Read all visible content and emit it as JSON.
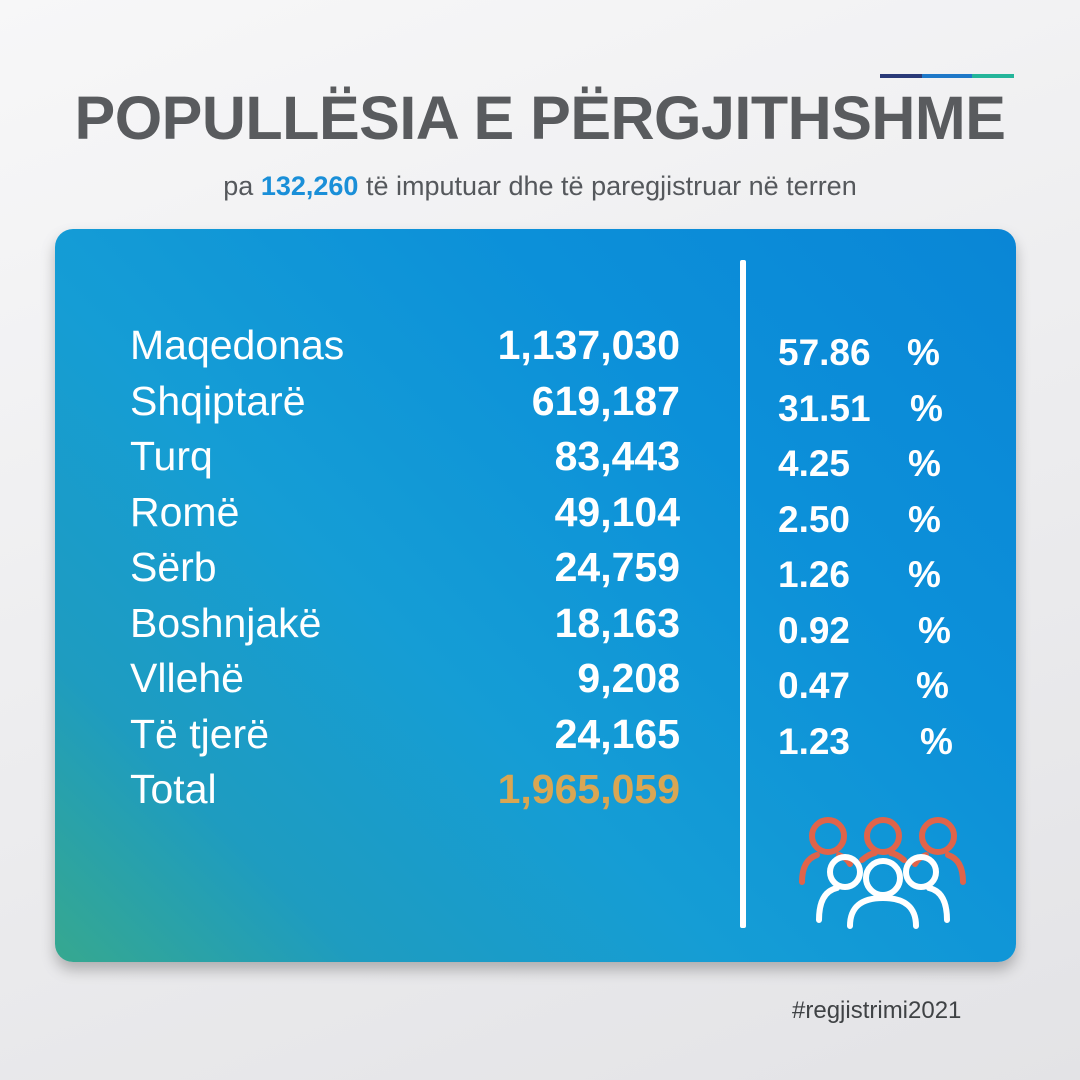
{
  "header": {
    "title": "POPULLËSIA E PËRGJITHSHME",
    "subtitle_prefix": "pa ",
    "subtitle_highlight": "132,260",
    "subtitle_suffix": " të imputuar dhe të paregjistruar në terren"
  },
  "colors": {
    "title": "#595b5e",
    "highlight": "#1a8fd8",
    "total_value": "#d9a653",
    "card_gradient_start": "#36a88f",
    "card_gradient_end": "#0a86d6",
    "icon_outer": "#e0644a",
    "icon_inner": "#ffffff"
  },
  "rows": [
    {
      "name": "Maqedonas",
      "value": "1,137,030",
      "percent": "57.86",
      "unit": "%"
    },
    {
      "name": "Shqiptarë",
      "value": "619,187",
      "percent": "31.51",
      "unit": "%"
    },
    {
      "name": "Turq",
      "value": "83,443",
      "percent": "4.25",
      "unit": "%"
    },
    {
      "name": "Romë",
      "value": "49,104",
      "percent": "2.50",
      "unit": "%"
    },
    {
      "name": "Sërb",
      "value": "24,759",
      "percent": "1.26",
      "unit": "%"
    },
    {
      "name": "Boshnjakë",
      "value": "18,163",
      "percent": "0.92",
      "unit": "%"
    },
    {
      "name": "Vllehë",
      "value": "9,208",
      "percent": "0.47",
      "unit": "%"
    },
    {
      "name": "Të tjerë",
      "value": "24,165",
      "percent": "1.23",
      "unit": "%"
    }
  ],
  "total": {
    "name": "Total",
    "value": "1,965,059"
  },
  "icon": "people-group-icon",
  "footer": {
    "hashtag": "#regjistrimi2021"
  }
}
